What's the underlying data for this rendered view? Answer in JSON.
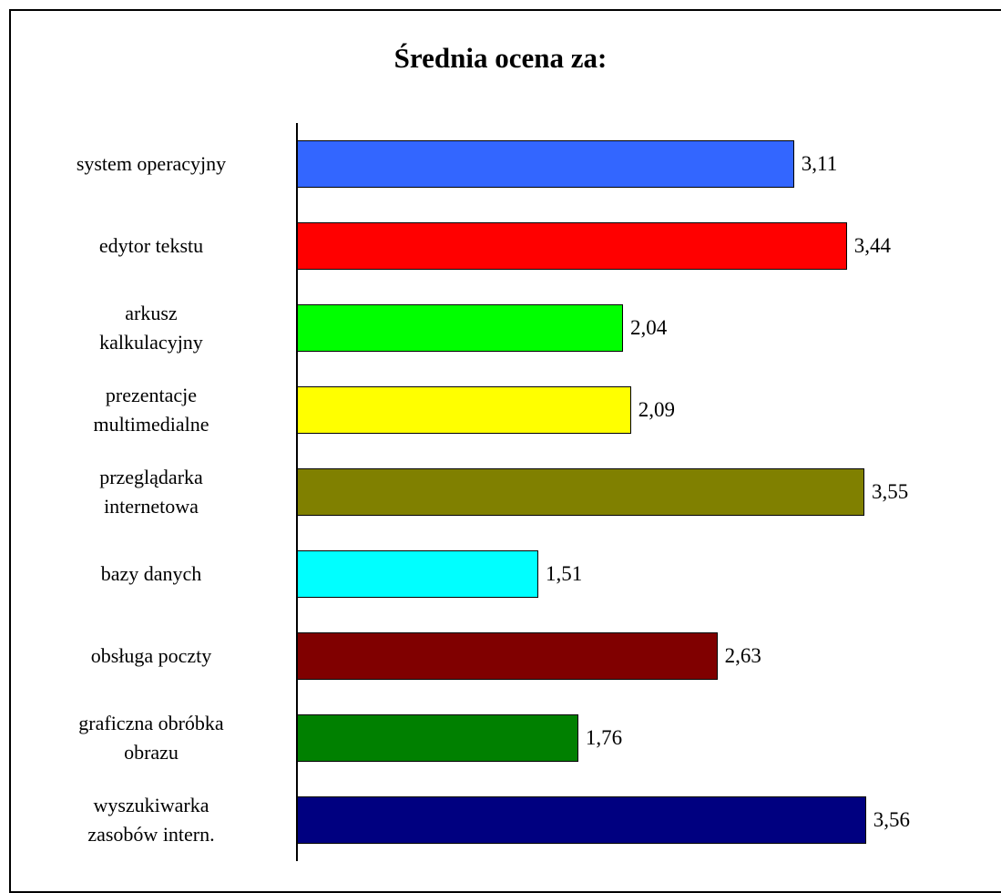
{
  "chart_data": {
    "type": "bar",
    "orientation": "horizontal",
    "title": "Średnia  ocena za:",
    "categories": [
      "system operacyjny",
      "edytor tekstu",
      "arkusz\nkalkulacyjny",
      "prezentacje\nmultimedialne",
      "przeglądarka\ninternetowa",
      "bazy danych",
      "obsługa poczty",
      "graficzna obróbka\nobrazu",
      "wyszukiwarka\nzasobów intern."
    ],
    "values": [
      3.11,
      3.44,
      2.04,
      2.09,
      3.55,
      1.51,
      2.63,
      1.76,
      3.56
    ],
    "value_labels": [
      "3,11",
      "3,44",
      "2,04",
      "2,09",
      "3,55",
      "1,51",
      "2,63",
      "1,76",
      "3,56"
    ],
    "colors": [
      "#3366ff",
      "#ff0000",
      "#00ff00",
      "#ffff00",
      "#808000",
      "#00ffff",
      "#800000",
      "#008000",
      "#000080"
    ],
    "xlim": [
      0,
      4
    ]
  }
}
